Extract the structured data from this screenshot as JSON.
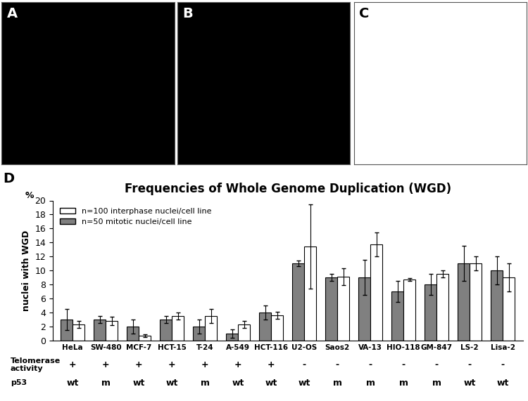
{
  "panel_labels": [
    "A",
    "B",
    "C",
    "D"
  ],
  "chart_data": {
    "type": "bar",
    "title": "Frequencies of Whole Genome Duplication (WGD)",
    "ylabel": "nuclei with WGD",
    "y_unit_label": "%",
    "categories": [
      "HeLa",
      "SW-480",
      "MCF-7",
      "HCT-15",
      "T-24",
      "A-549",
      "HCT-116",
      "U2-OS",
      "Saos2",
      "VA-13",
      "HIO-118",
      "GM-847",
      "LS-2",
      "Lisa-2"
    ],
    "series": [
      {
        "name": "n=100 interphase nuclei/cell line",
        "color": "#ffffff",
        "values": [
          2.3,
          2.8,
          0.7,
          3.5,
          3.5,
          2.3,
          3.6,
          13.4,
          9.1,
          13.7,
          8.7,
          9.5,
          11,
          9
        ],
        "errors": [
          0.5,
          0.6,
          0.2,
          0.5,
          1,
          0.5,
          0.5,
          6,
          1.2,
          1.7,
          0.2,
          0.5,
          1,
          2
        ]
      },
      {
        "name": "n=50 mitotic nuclei/cell line",
        "color": "#808080",
        "values": [
          3,
          3,
          2,
          3,
          2,
          1,
          4,
          11,
          9,
          9,
          7,
          8,
          11,
          10
        ],
        "errors": [
          1.5,
          0.5,
          1,
          0.5,
          1,
          0.6,
          1,
          0.4,
          0.5,
          2.5,
          1.5,
          1.5,
          2.5,
          2
        ]
      }
    ],
    "rows": [
      {
        "label": "Telomerase\nactivity",
        "values": [
          "+",
          "+",
          "+",
          "+",
          "+",
          "+",
          "+",
          "-",
          "-",
          "-",
          "-",
          "-",
          "-",
          "-"
        ]
      },
      {
        "label": "p53",
        "values": [
          "wt",
          "m",
          "wt",
          "wt",
          "m",
          "wt",
          "wt",
          "wt",
          "m",
          "m",
          "m",
          "m",
          "wt",
          "wt"
        ]
      }
    ],
    "ylim": [
      0,
      20
    ],
    "yticks": [
      0,
      2,
      4,
      6,
      8,
      10,
      12,
      14,
      16,
      18,
      20
    ],
    "legend": "upper left",
    "grid": false
  }
}
